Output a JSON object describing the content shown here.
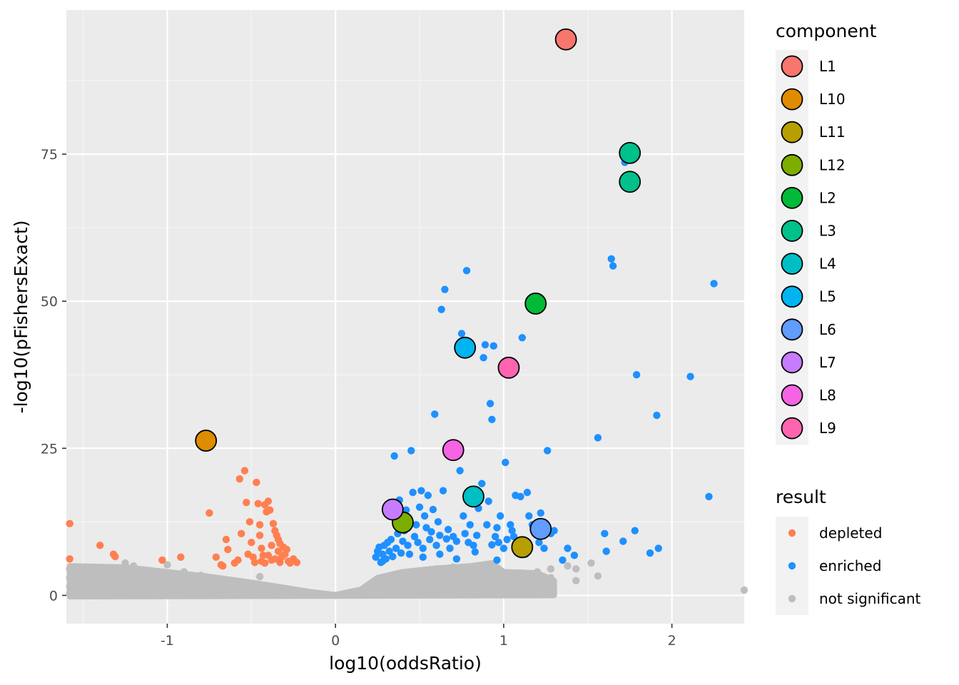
{
  "chart_data": {
    "type": "scatter",
    "xlabel": "log10(oddsRatio)",
    "ylabel": "-log10(pFishersExact)",
    "xlim": [
      -1.6,
      2.43
    ],
    "ylim": [
      -4.8,
      99.5
    ],
    "x_ticks": [
      -1,
      0,
      1,
      2
    ],
    "x_tick_labels": [
      "-1",
      "0",
      "1",
      "2"
    ],
    "y_ticks": [
      0,
      25,
      50,
      75
    ],
    "y_tick_labels": [
      "0",
      "25",
      "50",
      "75"
    ],
    "grid": true,
    "legend_position": "right",
    "result_legend": {
      "title": "result",
      "entries": [
        {
          "name": "depleted",
          "color": "#FF7F50"
        },
        {
          "name": "enriched",
          "color": "#1E90FF"
        },
        {
          "name": "not significant",
          "color": "#BEBEBE"
        }
      ]
    },
    "component_legend": {
      "title": "component",
      "entries": [
        {
          "name": "L1",
          "color": "#F8766D"
        },
        {
          "name": "L10",
          "color": "#DE8C00"
        },
        {
          "name": "L11",
          "color": "#B79F00"
        },
        {
          "name": "L12",
          "color": "#7CAE00"
        },
        {
          "name": "L2",
          "color": "#00BA38"
        },
        {
          "name": "L3",
          "color": "#00C08B"
        },
        {
          "name": "L4",
          "color": "#00BFC4"
        },
        {
          "name": "L5",
          "color": "#00B4F0"
        },
        {
          "name": "L6",
          "color": "#619CFF"
        },
        {
          "name": "L7",
          "color": "#C77CFF"
        },
        {
          "name": "L8",
          "color": "#F564E3"
        },
        {
          "name": "L9",
          "color": "#FF64B0"
        }
      ]
    },
    "series": [
      {
        "name": "depleted",
        "points": [
          [
            -1.58,
            12.2
          ],
          [
            -1.58,
            6.2
          ],
          [
            -1.4,
            8.5
          ],
          [
            -1.32,
            7.0
          ],
          [
            -1.31,
            6.6
          ],
          [
            -1.03,
            6.0
          ],
          [
            -0.92,
            6.5
          ],
          [
            -0.75,
            14.0
          ],
          [
            -0.71,
            6.5
          ],
          [
            -0.67,
            5.0
          ],
          [
            -0.65,
            9.5
          ],
          [
            -0.64,
            7.8
          ],
          [
            -0.6,
            5.5
          ],
          [
            -0.57,
            19.8
          ],
          [
            -0.56,
            10.5
          ],
          [
            -0.54,
            21.2
          ],
          [
            -0.53,
            15.8
          ],
          [
            -0.52,
            7.0
          ],
          [
            -0.51,
            12.5
          ],
          [
            -0.5,
            9.0
          ],
          [
            -0.49,
            6.5
          ],
          [
            -0.47,
            19.2
          ],
          [
            -0.46,
            15.6
          ],
          [
            -0.45,
            12.0
          ],
          [
            -0.45,
            10.2
          ],
          [
            -0.44,
            8.0
          ],
          [
            -0.43,
            6.8
          ],
          [
            -0.42,
            15.4
          ],
          [
            -0.41,
            14.2
          ],
          [
            -0.4,
            16.0
          ],
          [
            -0.39,
            14.5
          ],
          [
            -0.38,
            8.5
          ],
          [
            -0.38,
            6.0
          ],
          [
            -0.37,
            12.2
          ],
          [
            -0.36,
            11.0
          ],
          [
            -0.35,
            10.2
          ],
          [
            -0.34,
            9.5
          ],
          [
            -0.34,
            7.5
          ],
          [
            -0.33,
            8.8
          ],
          [
            -0.32,
            6.5
          ],
          [
            -0.31,
            8.2
          ],
          [
            -0.3,
            7.0
          ],
          [
            -0.29,
            7.8
          ],
          [
            -0.28,
            5.8
          ],
          [
            -0.27,
            5.5
          ],
          [
            -0.25,
            6.2
          ],
          [
            -0.23,
            5.6
          ],
          [
            -0.42,
            5.5
          ],
          [
            -0.48,
            5.6
          ],
          [
            -0.58,
            6.0
          ],
          [
            -0.68,
            5.2
          ],
          [
            -0.36,
            6.2
          ],
          [
            -0.33,
            5.6
          ],
          [
            -0.4,
            6.8
          ],
          [
            -0.44,
            5.8
          ]
        ]
      },
      {
        "name": "enriched",
        "points": [
          [
            0.24,
            6.5
          ],
          [
            0.25,
            7.5
          ],
          [
            0.26,
            8.2
          ],
          [
            0.27,
            5.6
          ],
          [
            0.28,
            7.0
          ],
          [
            0.29,
            8.5
          ],
          [
            0.3,
            6.2
          ],
          [
            0.31,
            9.0
          ],
          [
            0.32,
            7.5
          ],
          [
            0.34,
            6.6
          ],
          [
            0.35,
            23.7
          ],
          [
            0.36,
            8.0
          ],
          [
            0.37,
            10.5
          ],
          [
            0.38,
            16.2
          ],
          [
            0.39,
            7.2
          ],
          [
            0.4,
            9.2
          ],
          [
            0.41,
            11.0
          ],
          [
            0.42,
            14.5
          ],
          [
            0.43,
            8.5
          ],
          [
            0.44,
            7.0
          ],
          [
            0.45,
            24.6
          ],
          [
            0.46,
            17.5
          ],
          [
            0.47,
            10.0
          ],
          [
            0.48,
            12.0
          ],
          [
            0.49,
            9.0
          ],
          [
            0.5,
            15.0
          ],
          [
            0.51,
            17.8
          ],
          [
            0.52,
            8.0
          ],
          [
            0.53,
            13.5
          ],
          [
            0.54,
            11.5
          ],
          [
            0.55,
            17.0
          ],
          [
            0.56,
            9.5
          ],
          [
            0.57,
            10.8
          ],
          [
            0.58,
            14.6
          ],
          [
            0.59,
            30.8
          ],
          [
            0.6,
            8.5
          ],
          [
            0.61,
            12.5
          ],
          [
            0.62,
            10.2
          ],
          [
            0.63,
            48.6
          ],
          [
            0.64,
            17.8
          ],
          [
            0.65,
            52.0
          ],
          [
            0.66,
            9.6
          ],
          [
            0.67,
            11.2
          ],
          [
            0.68,
            8.0
          ],
          [
            0.7,
            10.0
          ],
          [
            0.72,
            9.2
          ],
          [
            0.74,
            21.2
          ],
          [
            0.75,
            44.5
          ],
          [
            0.76,
            13.5
          ],
          [
            0.77,
            10.5
          ],
          [
            0.78,
            55.2
          ],
          [
            0.79,
            9.0
          ],
          [
            0.8,
            12.0
          ],
          [
            0.82,
            8.5
          ],
          [
            0.84,
            10.2
          ],
          [
            0.85,
            14.8
          ],
          [
            0.87,
            19.0
          ],
          [
            0.88,
            40.4
          ],
          [
            0.89,
            42.6
          ],
          [
            0.9,
            12.0
          ],
          [
            0.91,
            16.0
          ],
          [
            0.92,
            32.6
          ],
          [
            0.93,
            29.9
          ],
          [
            0.94,
            42.4
          ],
          [
            0.95,
            10.0
          ],
          [
            0.96,
            11.5
          ],
          [
            0.97,
            9.0
          ],
          [
            0.98,
            13.5
          ],
          [
            1.0,
            8.0
          ],
          [
            1.01,
            22.6
          ],
          [
            1.02,
            9.5
          ],
          [
            1.04,
            12.0
          ],
          [
            1.05,
            11.0
          ],
          [
            1.06,
            10.0
          ],
          [
            1.07,
            17.0
          ],
          [
            1.1,
            16.8
          ],
          [
            1.11,
            43.8
          ],
          [
            1.13,
            7.0
          ],
          [
            1.14,
            17.5
          ],
          [
            1.15,
            13.5
          ],
          [
            1.17,
            12.0
          ],
          [
            1.19,
            10.5
          ],
          [
            1.21,
            9.0
          ],
          [
            1.22,
            14.0
          ],
          [
            1.24,
            8.0
          ],
          [
            1.26,
            24.6
          ],
          [
            1.28,
            10.5
          ],
          [
            1.3,
            11.0
          ],
          [
            1.35,
            6.0
          ],
          [
            1.38,
            8.0
          ],
          [
            1.42,
            6.8
          ],
          [
            1.56,
            26.8
          ],
          [
            1.6,
            10.5
          ],
          [
            1.61,
            7.5
          ],
          [
            1.64,
            57.2
          ],
          [
            1.65,
            56.0
          ],
          [
            1.71,
            9.2
          ],
          [
            1.72,
            73.6
          ],
          [
            1.78,
            11.0
          ],
          [
            1.79,
            37.5
          ],
          [
            1.87,
            7.2
          ],
          [
            1.91,
            30.6
          ],
          [
            1.92,
            8.0
          ],
          [
            2.11,
            37.2
          ],
          [
            2.22,
            16.8
          ],
          [
            2.25,
            53.0
          ],
          [
            0.28,
            5.8
          ],
          [
            0.33,
            9.5
          ],
          [
            0.52,
            6.5
          ],
          [
            0.62,
            7.0
          ],
          [
            0.72,
            6.2
          ],
          [
            0.83,
            7.4
          ],
          [
            0.93,
            8.6
          ],
          [
            0.96,
            6.0
          ],
          [
            1.08,
            9.0
          ]
        ]
      },
      {
        "name": "not significant",
        "points": [
          [
            -1.58,
            4.5
          ],
          [
            -1.58,
            3.0
          ],
          [
            -1.58,
            1.5
          ],
          [
            -1.58,
            0.3
          ],
          [
            -1.25,
            5.5
          ],
          [
            -1.2,
            5.0
          ],
          [
            -1.1,
            4.2
          ],
          [
            -1.0,
            5.2
          ],
          [
            -0.9,
            4.0
          ],
          [
            -0.8,
            3.4
          ],
          [
            -0.7,
            2.8
          ],
          [
            -0.6,
            2.2
          ],
          [
            -0.5,
            1.8
          ],
          [
            -0.4,
            1.3
          ],
          [
            -0.3,
            0.9
          ],
          [
            -0.2,
            0.5
          ],
          [
            -0.1,
            0.2
          ],
          [
            -0.05,
            0.05
          ],
          [
            0.0,
            0.0
          ],
          [
            0.05,
            0.1
          ],
          [
            0.1,
            0.3
          ],
          [
            0.2,
            1.5
          ],
          [
            0.3,
            2.5
          ],
          [
            0.4,
            3.5
          ],
          [
            0.5,
            4.2
          ],
          [
            0.6,
            4.5
          ],
          [
            0.7,
            4.8
          ],
          [
            0.8,
            3.8
          ],
          [
            0.9,
            3.0
          ],
          [
            0.95,
            2.0
          ],
          [
            1.0,
            3.5
          ],
          [
            1.1,
            3.8
          ],
          [
            1.2,
            4.0
          ],
          [
            1.28,
            4.5
          ],
          [
            1.28,
            3.0
          ],
          [
            1.38,
            5.0
          ],
          [
            1.43,
            4.5
          ],
          [
            1.43,
            2.5
          ],
          [
            1.52,
            5.5
          ],
          [
            1.56,
            3.3
          ],
          [
            2.43,
            0.9
          ],
          [
            -0.85,
            2.5
          ],
          [
            -0.45,
            3.2
          ],
          [
            0.45,
            2.0
          ],
          [
            0.65,
            1.5
          ]
        ]
      }
    ],
    "components": [
      {
        "name": "L1",
        "x": 1.37,
        "y": 94.5
      },
      {
        "name": "L10",
        "x": -0.77,
        "y": 26.3
      },
      {
        "name": "L11",
        "x": 1.11,
        "y": 8.2
      },
      {
        "name": "L12",
        "x": 0.4,
        "y": 12.4
      },
      {
        "name": "L2",
        "x": 1.19,
        "y": 49.6
      },
      {
        "name": "L3",
        "x": 1.75,
        "y": 75.2
      },
      {
        "name": "L3",
        "x": 1.75,
        "y": 70.3
      },
      {
        "name": "L4",
        "x": 0.82,
        "y": 16.8
      },
      {
        "name": "L5",
        "x": 0.77,
        "y": 42.1
      },
      {
        "name": "L6",
        "x": 1.22,
        "y": 11.3
      },
      {
        "name": "L7",
        "x": 0.34,
        "y": 14.6
      },
      {
        "name": "L8",
        "x": 0.7,
        "y": 24.7
      },
      {
        "name": "L9",
        "x": 1.03,
        "y": 38.7
      }
    ]
  }
}
